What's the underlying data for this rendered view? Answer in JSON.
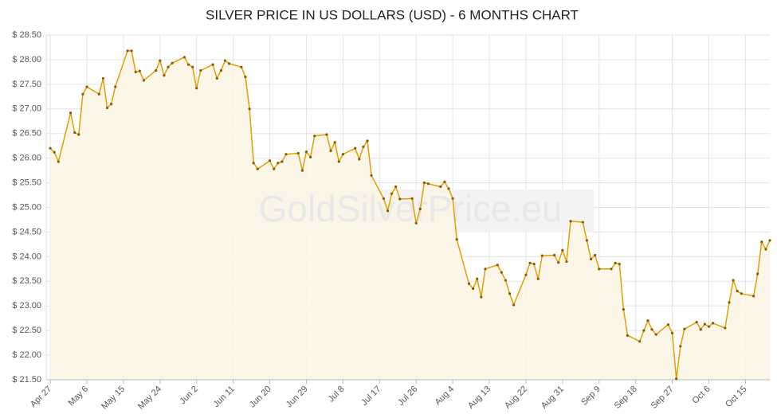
{
  "chart_data": {
    "type": "line",
    "title": "SILVER PRICE IN US DOLLARS (USD) - 6 MONTHS CHART",
    "watermark": "GoldSilverPrice.eu",
    "color": "#e0a000",
    "fill": "#fbf5e4",
    "grid": true,
    "xlim": [
      "Apr 26",
      "Oct 21"
    ],
    "xticks": [
      "Apr 27",
      "May 6",
      "May 15",
      "May 24",
      "Jun 2",
      "Jun 11",
      "Jun 20",
      "Jun 29",
      "Jul 8",
      "Jul 17",
      "Jul 26",
      "Aug 4",
      "Aug 13",
      "Aug 22",
      "Aug 31",
      "Sep 9",
      "Sep 18",
      "Sep 27",
      "Oct 6",
      "Oct 15"
    ],
    "ylim": [
      21.5,
      28.5
    ],
    "yticks": [
      {
        "value": 21.5,
        "label": "$ 21.50"
      },
      {
        "value": 22,
        "label": "$ 22.00"
      },
      {
        "value": 22.5,
        "label": "$ 22.50"
      },
      {
        "value": 23,
        "label": "$ 23.00"
      },
      {
        "value": 23.5,
        "label": "$ 23.50"
      },
      {
        "value": 24,
        "label": "$ 24.00"
      },
      {
        "value": 24.5,
        "label": "$ 24.50"
      },
      {
        "value": 25,
        "label": "$ 25.00"
      },
      {
        "value": 25.5,
        "label": "$ 25.50"
      },
      {
        "value": 26,
        "label": "$ 26.00"
      },
      {
        "value": 26.5,
        "label": "$ 26.50"
      },
      {
        "value": 27,
        "label": "$ 27.00"
      },
      {
        "value": 27.5,
        "label": "$ 27.50"
      },
      {
        "value": 28,
        "label": "$ 28.00"
      },
      {
        "value": 28.5,
        "label": "$ 28.50"
      }
    ],
    "x": [
      "Apr 27",
      "Apr 28",
      "Apr 29",
      "May 2",
      "May 3",
      "May 4",
      "May 5",
      "May 6",
      "May 9",
      "May 10",
      "May 11",
      "May 12",
      "May 13",
      "May 16",
      "May 17",
      "May 18",
      "May 19",
      "May 20",
      "May 23",
      "May 24",
      "May 25",
      "May 26",
      "May 27",
      "May 30",
      "May 31",
      "Jun 1",
      "Jun 2",
      "Jun 3",
      "Jun 6",
      "Jun 7",
      "Jun 8",
      "Jun 9",
      "Jun 10",
      "Jun 13",
      "Jun 14",
      "Jun 15",
      "Jun 16",
      "Jun 17",
      "Jun 20",
      "Jun 21",
      "Jun 22",
      "Jun 23",
      "Jun 24",
      "Jun 27",
      "Jun 28",
      "Jun 29",
      "Jun 30",
      "Jul 1",
      "Jul 4",
      "Jul 5",
      "Jul 6",
      "Jul 7",
      "Jul 8",
      "Jul 11",
      "Jul 12",
      "Jul 13",
      "Jul 14",
      "Jul 15",
      "Jul 18",
      "Jul 19",
      "Jul 20",
      "Jul 21",
      "Jul 22",
      "Jul 25",
      "Jul 26",
      "Jul 27",
      "Jul 28",
      "Jul 29",
      "Aug 1",
      "Aug 2",
      "Aug 3",
      "Aug 4",
      "Aug 5",
      "Aug 8",
      "Aug 9",
      "Aug 10",
      "Aug 11",
      "Aug 12",
      "Aug 15",
      "Aug 16",
      "Aug 17",
      "Aug 18",
      "Aug 19",
      "Aug 22",
      "Aug 23",
      "Aug 24",
      "Aug 25",
      "Aug 26",
      "Aug 29",
      "Aug 30",
      "Aug 31",
      "Sep 1",
      "Sep 2",
      "Sep 5",
      "Sep 6",
      "Sep 7",
      "Sep 8",
      "Sep 9",
      "Sep 12",
      "Sep 13",
      "Sep 14",
      "Sep 15",
      "Sep 16",
      "Sep 19",
      "Sep 20",
      "Sep 21",
      "Sep 22",
      "Sep 23",
      "Sep 26",
      "Sep 27",
      "Sep 28",
      "Sep 29",
      "Sep 30",
      "Oct 3",
      "Oct 4",
      "Oct 5",
      "Oct 6",
      "Oct 7",
      "Oct 10",
      "Oct 11",
      "Oct 12",
      "Oct 13",
      "Oct 14",
      "Oct 17",
      "Oct 18",
      "Oct 19",
      "Oct 20",
      "Oct 21"
    ],
    "values": [
      26.2,
      26.12,
      25.93,
      26.92,
      26.52,
      26.48,
      27.3,
      27.45,
      27.3,
      27.62,
      27.02,
      27.1,
      27.45,
      28.18,
      28.18,
      27.75,
      27.77,
      27.58,
      27.78,
      27.98,
      27.68,
      27.85,
      27.93,
      28.05,
      27.9,
      27.85,
      27.42,
      27.78,
      27.9,
      27.62,
      27.78,
      27.98,
      27.92,
      27.85,
      27.65,
      27.0,
      25.9,
      25.78,
      25.95,
      25.78,
      25.9,
      25.93,
      26.08,
      26.1,
      25.75,
      26.13,
      26.02,
      26.45,
      26.48,
      26.15,
      26.32,
      25.93,
      26.08,
      26.2,
      25.98,
      26.23,
      26.35,
      25.65,
      25.18,
      24.93,
      25.28,
      25.42,
      25.17,
      25.18,
      24.68,
      24.97,
      25.5,
      25.48,
      25.42,
      25.52,
      25.38,
      25.18,
      24.35,
      23.45,
      23.35,
      23.55,
      23.18,
      23.75,
      23.83,
      23.68,
      23.52,
      23.25,
      23.02,
      23.63,
      23.87,
      23.85,
      23.55,
      24.02,
      24.03,
      23.88,
      24.13,
      23.9,
      24.72,
      24.7,
      24.33,
      23.95,
      24.03,
      23.75,
      23.75,
      23.87,
      23.85,
      22.93,
      22.4,
      22.28,
      22.5,
      22.7,
      22.52,
      22.42,
      22.62,
      22.45,
      21.52,
      22.18,
      22.53,
      22.67,
      22.52,
      22.63,
      22.58,
      22.65,
      22.55,
      23.07,
      23.52,
      23.3,
      23.25,
      23.2,
      23.65,
      24.3,
      24.15,
      24.33
    ]
  }
}
